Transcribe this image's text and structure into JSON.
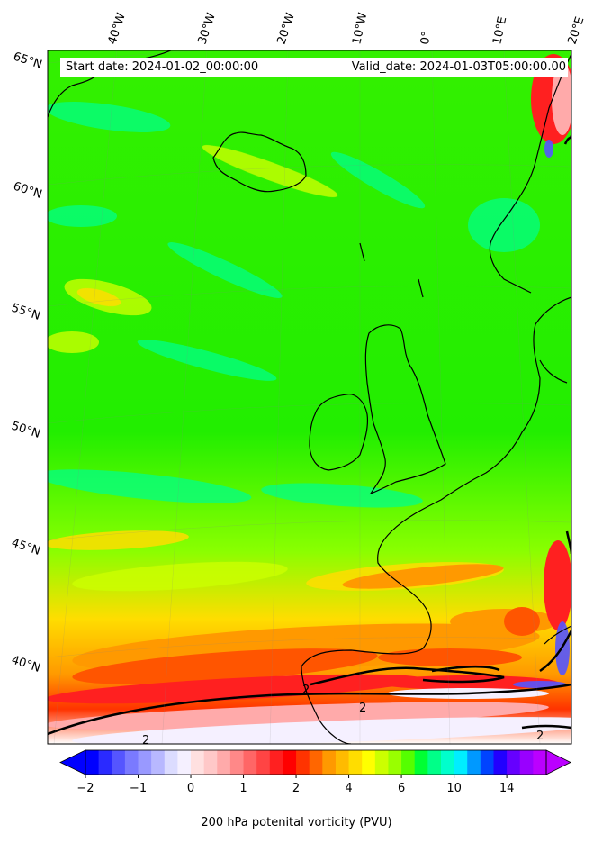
{
  "header": {
    "start_date": "Start date: 2024-01-02_00:00:00",
    "valid_date": "Valid_date: 2024-01-03T05:00:00.00"
  },
  "map": {
    "projection": "lambert-conformal",
    "lon_labels": [
      "40°W",
      "30°W",
      "20°W",
      "10°W",
      "0°",
      "10°E",
      "20°E"
    ],
    "lat_labels": [
      "65°N",
      "60°N",
      "55°N",
      "50°N",
      "45°N",
      "40°N"
    ],
    "field": "200 hPa potential vorticity",
    "contour_level_label": "2",
    "colors": {
      "background_field": "#22ee00",
      "coastline": "#000000"
    }
  },
  "colorbar": {
    "label": "200 hPa potenital vorticity (PVU)",
    "ticks": [
      "−2",
      "−1",
      "0",
      "1",
      "2",
      "4",
      "6",
      "10",
      "14"
    ],
    "colors": [
      "#0000ff",
      "#2a2aff",
      "#5555ff",
      "#7a7aff",
      "#9999ff",
      "#b8b8ff",
      "#dcdcff",
      "#f5f0ff",
      "#ffe0e0",
      "#ffc8c8",
      "#ffaaaa",
      "#ff8888",
      "#ff6666",
      "#ff4444",
      "#ff2020",
      "#ff0000",
      "#ff3300",
      "#ff6600",
      "#ff9900",
      "#ffbb00",
      "#ffdd00",
      "#ffff00",
      "#ccff00",
      "#99ff00",
      "#55ff00",
      "#00ff33",
      "#00ff88",
      "#00ffcc",
      "#00eeff",
      "#0099ff",
      "#0044ff",
      "#2200ff",
      "#6600ff",
      "#9900ff",
      "#bb00ff"
    ],
    "extend": "both"
  }
}
